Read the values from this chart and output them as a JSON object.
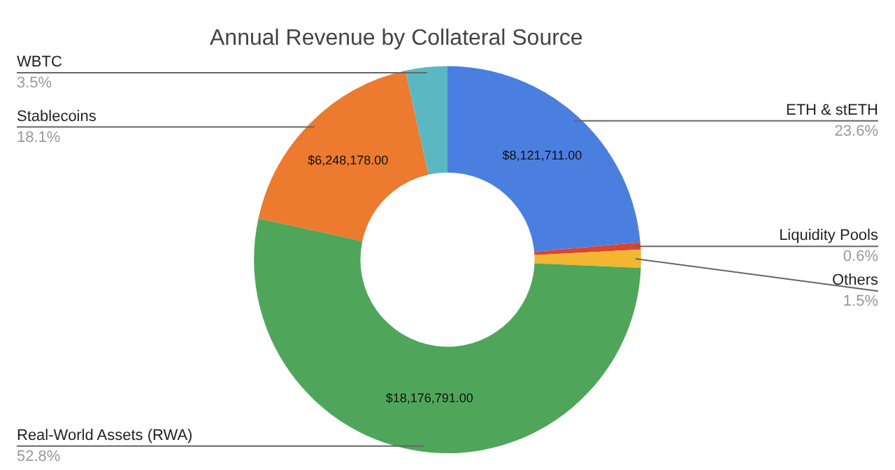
{
  "chart_data": {
    "type": "donut",
    "title": "Annual Revenue by Collateral Source",
    "categories": [
      "ETH & stETH",
      "Liquidity Pools",
      "Others",
      "Real-World Assets (RWA)",
      "Stablecoins",
      "WBTC"
    ],
    "values": [
      23.6,
      0.6,
      1.5,
      52.8,
      18.1,
      3.5
    ],
    "colors": [
      "#4a7fe0",
      "#d9452f",
      "#f2b631",
      "#4fa65a",
      "#ec7a2f",
      "#5bb8c3"
    ],
    "value_labels": [
      "23.6%",
      "0.6%",
      "1.5%",
      "52.8%",
      "18.1%",
      "3.5%"
    ],
    "annotations": [
      {
        "text": "$8,121,711.00",
        "x": "ETH & stETH"
      },
      {
        "text": "$18,176,791.00",
        "x": "Real-World Assets (RWA)"
      },
      {
        "text": "$6,248,178.00",
        "x": "Stablecoins"
      }
    ],
    "legend": false
  }
}
